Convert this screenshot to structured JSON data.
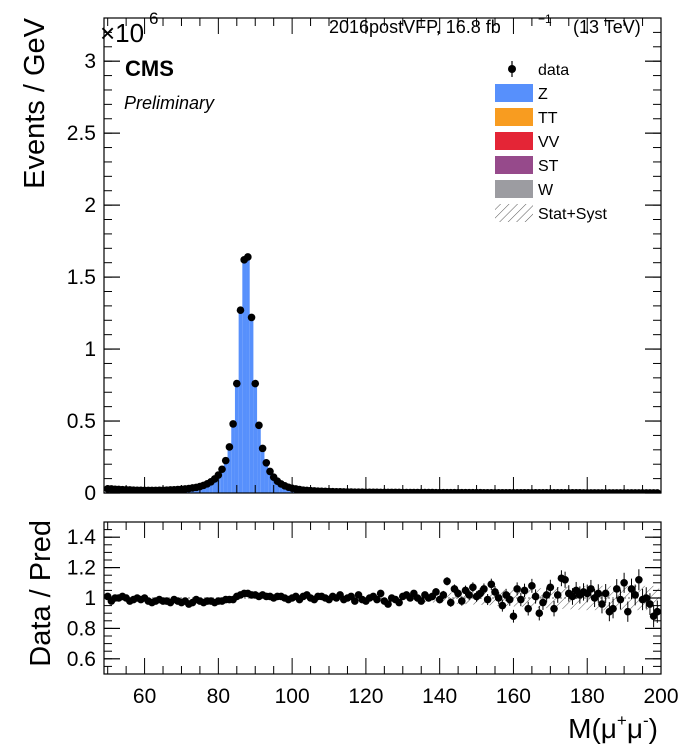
{
  "colors": {
    "Z": "#5790fc",
    "TT": "#f89c20",
    "VV": "#e42536",
    "ST": "#964a8b",
    "W": "#9c9ca1",
    "data": "#000000"
  },
  "header": {
    "exponent_base": "×10",
    "exponent_power": "6",
    "lumi_text": "2016postVFP, 16.8 fb",
    "lumi_power": "−1",
    "energy_text": "(13 TeV)",
    "cms_label": "CMS",
    "preliminary_label": "Preliminary"
  },
  "chart_data": [
    {
      "type": "bar",
      "panel": "main",
      "ylabel": "Events / GeV",
      "xlim": [
        49,
        200
      ],
      "ylim": [
        0,
        3.3
      ],
      "y_scale_factor": 1000000,
      "yticks": [
        0,
        0.5,
        1,
        1.5,
        2,
        2.5,
        3
      ],
      "ytick_labels": [
        "0",
        "0.5",
        "1",
        "1.5",
        "2",
        "2.5",
        "3"
      ],
      "legend": {
        "placement": "top-right",
        "entries": [
          {
            "label": "data",
            "kind": "marker"
          },
          {
            "label": "Z",
            "kind": "fill",
            "color_key": "Z"
          },
          {
            "label": "TT",
            "kind": "fill",
            "color_key": "TT"
          },
          {
            "label": "VV",
            "kind": "fill",
            "color_key": "VV"
          },
          {
            "label": "ST",
            "kind": "fill",
            "color_key": "ST"
          },
          {
            "label": "W",
            "kind": "fill",
            "color_key": "W"
          },
          {
            "label": "Stat+Syst",
            "kind": "hatch"
          }
        ]
      },
      "x": [
        50,
        51,
        52,
        53,
        54,
        55,
        56,
        57,
        58,
        59,
        60,
        61,
        62,
        63,
        64,
        65,
        66,
        67,
        68,
        69,
        70,
        71,
        72,
        73,
        74,
        75,
        76,
        77,
        78,
        79,
        80,
        81,
        82,
        83,
        84,
        85,
        86,
        87,
        88,
        89,
        90,
        91,
        92,
        93,
        94,
        95,
        96,
        97,
        98,
        99,
        100,
        101,
        102,
        103,
        104,
        105,
        106,
        107,
        108,
        109,
        110,
        111,
        112,
        113,
        114,
        115,
        116,
        117,
        118,
        119,
        120,
        121,
        122,
        123,
        124,
        125,
        126,
        127,
        128,
        129,
        130,
        131,
        132,
        133,
        134,
        135,
        136,
        137,
        138,
        139,
        140,
        141,
        142,
        143,
        144,
        145,
        146,
        147,
        148,
        149,
        150,
        151,
        152,
        153,
        154,
        155,
        156,
        157,
        158,
        159,
        160,
        161,
        162,
        163,
        164,
        165,
        166,
        167,
        168,
        169,
        170,
        171,
        172,
        173,
        174,
        175,
        176,
        177,
        178,
        179,
        180,
        181,
        182,
        183,
        184,
        185,
        186,
        187,
        188,
        189,
        190,
        191,
        192,
        193,
        194,
        195,
        196,
        197,
        198,
        199
      ],
      "data_values": [
        0.029,
        0.028,
        0.026,
        0.025,
        0.023,
        0.022,
        0.021,
        0.02,
        0.019,
        0.019,
        0.018,
        0.018,
        0.018,
        0.018,
        0.019,
        0.019,
        0.02,
        0.021,
        0.022,
        0.024,
        0.026,
        0.028,
        0.031,
        0.035,
        0.039,
        0.045,
        0.053,
        0.064,
        0.078,
        0.098,
        0.125,
        0.165,
        0.225,
        0.32,
        0.48,
        0.76,
        1.27,
        1.62,
        1.64,
        1.22,
        0.76,
        0.47,
        0.31,
        0.21,
        0.15,
        0.11,
        0.082,
        0.063,
        0.05,
        0.04,
        0.033,
        0.028,
        0.024,
        0.02,
        0.018,
        0.016,
        0.014,
        0.013,
        0.012,
        0.011,
        0.01,
        0.009,
        0.0085,
        0.008,
        0.0075,
        0.007,
        0.0065,
        0.006,
        0.0058,
        0.0055,
        0.0052,
        0.005,
        0.0048,
        0.0046,
        0.0044,
        0.0042,
        0.004,
        0.0038,
        0.0037,
        0.0036,
        0.0035,
        0.0034,
        0.0033,
        0.0032,
        0.0031,
        0.003,
        0.0029,
        0.0028,
        0.0027,
        0.0026,
        0.0025,
        0.0024,
        0.0024,
        0.0023,
        0.0022,
        0.0022,
        0.0021,
        0.0021,
        0.002,
        0.002,
        0.0019,
        0.0019,
        0.0018,
        0.0018,
        0.0017,
        0.0017,
        0.0016,
        0.0016,
        0.0015,
        0.0015,
        0.0015,
        0.0014,
        0.0014,
        0.0014,
        0.0013,
        0.0013,
        0.0013,
        0.0012,
        0.0012,
        0.0012,
        0.0011,
        0.0011,
        0.0011,
        0.0011,
        0.001,
        0.001,
        0.001,
        0.001,
        0.001,
        0.0009,
        0.0009,
        0.0009,
        0.0009,
        0.0009,
        0.0008,
        0.0008,
        0.0008,
        0.0008,
        0.0008,
        0.0008,
        0.0007,
        0.0007,
        0.0007,
        0.0007,
        0.0007,
        0.0007,
        0.0007,
        0.0006,
        0.0006,
        0.0006
      ],
      "z_values": [
        0.029,
        0.028,
        0.026,
        0.025,
        0.023,
        0.022,
        0.021,
        0.02,
        0.019,
        0.019,
        0.018,
        0.018,
        0.018,
        0.018,
        0.019,
        0.019,
        0.02,
        0.021,
        0.022,
        0.024,
        0.026,
        0.028,
        0.031,
        0.035,
        0.039,
        0.045,
        0.053,
        0.064,
        0.078,
        0.098,
        0.125,
        0.165,
        0.225,
        0.32,
        0.48,
        0.76,
        1.27,
        1.62,
        1.64,
        1.22,
        0.76,
        0.47,
        0.31,
        0.21,
        0.15,
        0.11,
        0.082,
        0.063,
        0.05,
        0.04,
        0.033,
        0.028,
        0.024,
        0.02,
        0.018,
        0.016,
        0.014,
        0.013,
        0.012,
        0.011,
        0.01,
        0.009,
        0.0085,
        0.008,
        0.0075,
        0.007,
        0.0065,
        0.006,
        0.0058,
        0.0055,
        0.0052,
        0.005,
        0.0048,
        0.0046,
        0.0044,
        0.0042,
        0.004,
        0.0038,
        0.0037,
        0.0036,
        0.0035,
        0.0034,
        0.0033,
        0.0032,
        0.0031,
        0.003,
        0.0029,
        0.0028,
        0.0027,
        0.0026,
        0.0025,
        0.0024,
        0.0024,
        0.0023,
        0.0022,
        0.0022,
        0.0021,
        0.0021,
        0.002,
        0.002,
        0.0019,
        0.0019,
        0.0018,
        0.0018,
        0.0017,
        0.0017,
        0.0016,
        0.0016,
        0.0015,
        0.0015,
        0.0015,
        0.0014,
        0.0014,
        0.0014,
        0.0013,
        0.0013,
        0.0013,
        0.0012,
        0.0012,
        0.0012,
        0.0011,
        0.0011,
        0.0011,
        0.0011,
        0.001,
        0.001,
        0.001,
        0.001,
        0.001,
        0.0009,
        0.0009,
        0.0009,
        0.0009,
        0.0009,
        0.0008,
        0.0008,
        0.0008,
        0.0008,
        0.0008,
        0.0008,
        0.0007,
        0.0007,
        0.0007,
        0.0007,
        0.0007,
        0.0007,
        0.0007,
        0.0006,
        0.0006,
        0.0006
      ]
    },
    {
      "type": "scatter",
      "panel": "ratio",
      "ylabel": "Data / Pred",
      "xlabel": "M(μ⁺μ⁻)",
      "xlabel_parts": {
        "base": "M(μ",
        "sup1": "+",
        "mid": "μ",
        "sup2": "-",
        "end": ")"
      },
      "xlim": [
        49,
        200
      ],
      "ylim": [
        0.5,
        1.5
      ],
      "yticks": [
        0.6,
        0.8,
        1,
        1.2,
        1.4
      ],
      "ytick_labels": [
        "0.6",
        "0.8",
        "1",
        "1.2",
        "1.4"
      ],
      "xticks": [
        60,
        80,
        100,
        120,
        140,
        160,
        180,
        200
      ],
      "xtick_labels": [
        "60",
        "80",
        "100",
        "120",
        "140",
        "160",
        "180",
        "200"
      ],
      "reference_line": 1,
      "x": [
        50,
        51,
        52,
        53,
        54,
        55,
        56,
        57,
        58,
        59,
        60,
        61,
        62,
        63,
        64,
        65,
        66,
        67,
        68,
        69,
        70,
        71,
        72,
        73,
        74,
        75,
        76,
        77,
        78,
        79,
        80,
        81,
        82,
        83,
        84,
        85,
        86,
        87,
        88,
        89,
        90,
        91,
        92,
        93,
        94,
        95,
        96,
        97,
        98,
        99,
        100,
        101,
        102,
        103,
        104,
        105,
        106,
        107,
        108,
        109,
        110,
        111,
        112,
        113,
        114,
        115,
        116,
        117,
        118,
        119,
        120,
        121,
        122,
        123,
        124,
        125,
        126,
        127,
        128,
        129,
        130,
        131,
        132,
        133,
        134,
        135,
        136,
        137,
        138,
        139,
        140,
        141,
        142,
        143,
        144,
        145,
        146,
        147,
        148,
        149,
        150,
        151,
        152,
        153,
        154,
        155,
        156,
        157,
        158,
        159,
        160,
        161,
        162,
        163,
        164,
        165,
        166,
        167,
        168,
        169,
        170,
        171,
        172,
        173,
        174,
        175,
        176,
        177,
        178,
        179,
        180,
        181,
        182,
        183,
        184,
        185,
        186,
        187,
        188,
        189,
        190,
        191,
        192,
        193,
        194,
        195,
        196,
        197,
        198,
        199
      ],
      "ratio_values": [
        1.01,
        0.98,
        1.0,
        1.0,
        1.01,
        1.0,
        0.98,
        0.99,
        1.0,
        0.99,
        1.0,
        0.98,
        0.97,
        0.98,
        0.99,
        0.98,
        0.98,
        0.97,
        0.99,
        0.98,
        0.97,
        0.98,
        0.96,
        0.97,
        0.99,
        0.98,
        0.97,
        0.98,
        0.98,
        0.97,
        0.98,
        0.98,
        0.99,
        0.99,
        0.99,
        1.01,
        1.02,
        1.03,
        1.03,
        1.02,
        1.02,
        1.01,
        1.02,
        1.01,
        1.01,
        1.0,
        1.01,
        1.01,
        1.0,
        0.99,
        1.0,
        1.01,
        0.99,
        1.01,
        1.02,
        1.0,
        0.99,
        1.01,
        1.01,
        1.0,
        0.99,
        1.01,
        1.0,
        1.02,
        0.99,
        1.0,
        1.01,
        0.98,
        1.02,
        0.99,
        0.98,
        1.0,
        1.01,
        0.99,
        1.03,
        0.98,
        0.96,
        1.0,
        0.99,
        0.97,
        1.01,
        1.02,
        1.0,
        1.03,
        1.0,
        0.98,
        1.02,
        1.0,
        1.01,
        1.04,
        0.99,
        1.02,
        1.11,
        0.97,
        1.06,
        1.03,
        0.98,
        1.05,
        1.02,
        1.07,
        1.01,
        1.03,
        1.06,
        0.99,
        1.09,
        1.04,
        1.0,
        0.95,
        1.02,
        0.99,
        0.88,
        1.06,
        0.99,
        1.05,
        0.93,
        1.08,
        1.01,
        0.9,
        0.97,
        1.02,
        1.07,
        0.93,
        1.02,
        1.13,
        1.12,
        1.03,
        1.01,
        1.05,
        1.02,
        1.04,
        1.03,
        1.06,
        1.0,
        1.03,
        0.96,
        1.03,
        0.91,
        0.93,
        1.06,
        0.99,
        1.1,
        0.91,
        1.06,
        1.02,
        1.12,
        0.99,
        1.0,
        0.96,
        0.88,
        0.91,
        1.04
      ]
    }
  ]
}
